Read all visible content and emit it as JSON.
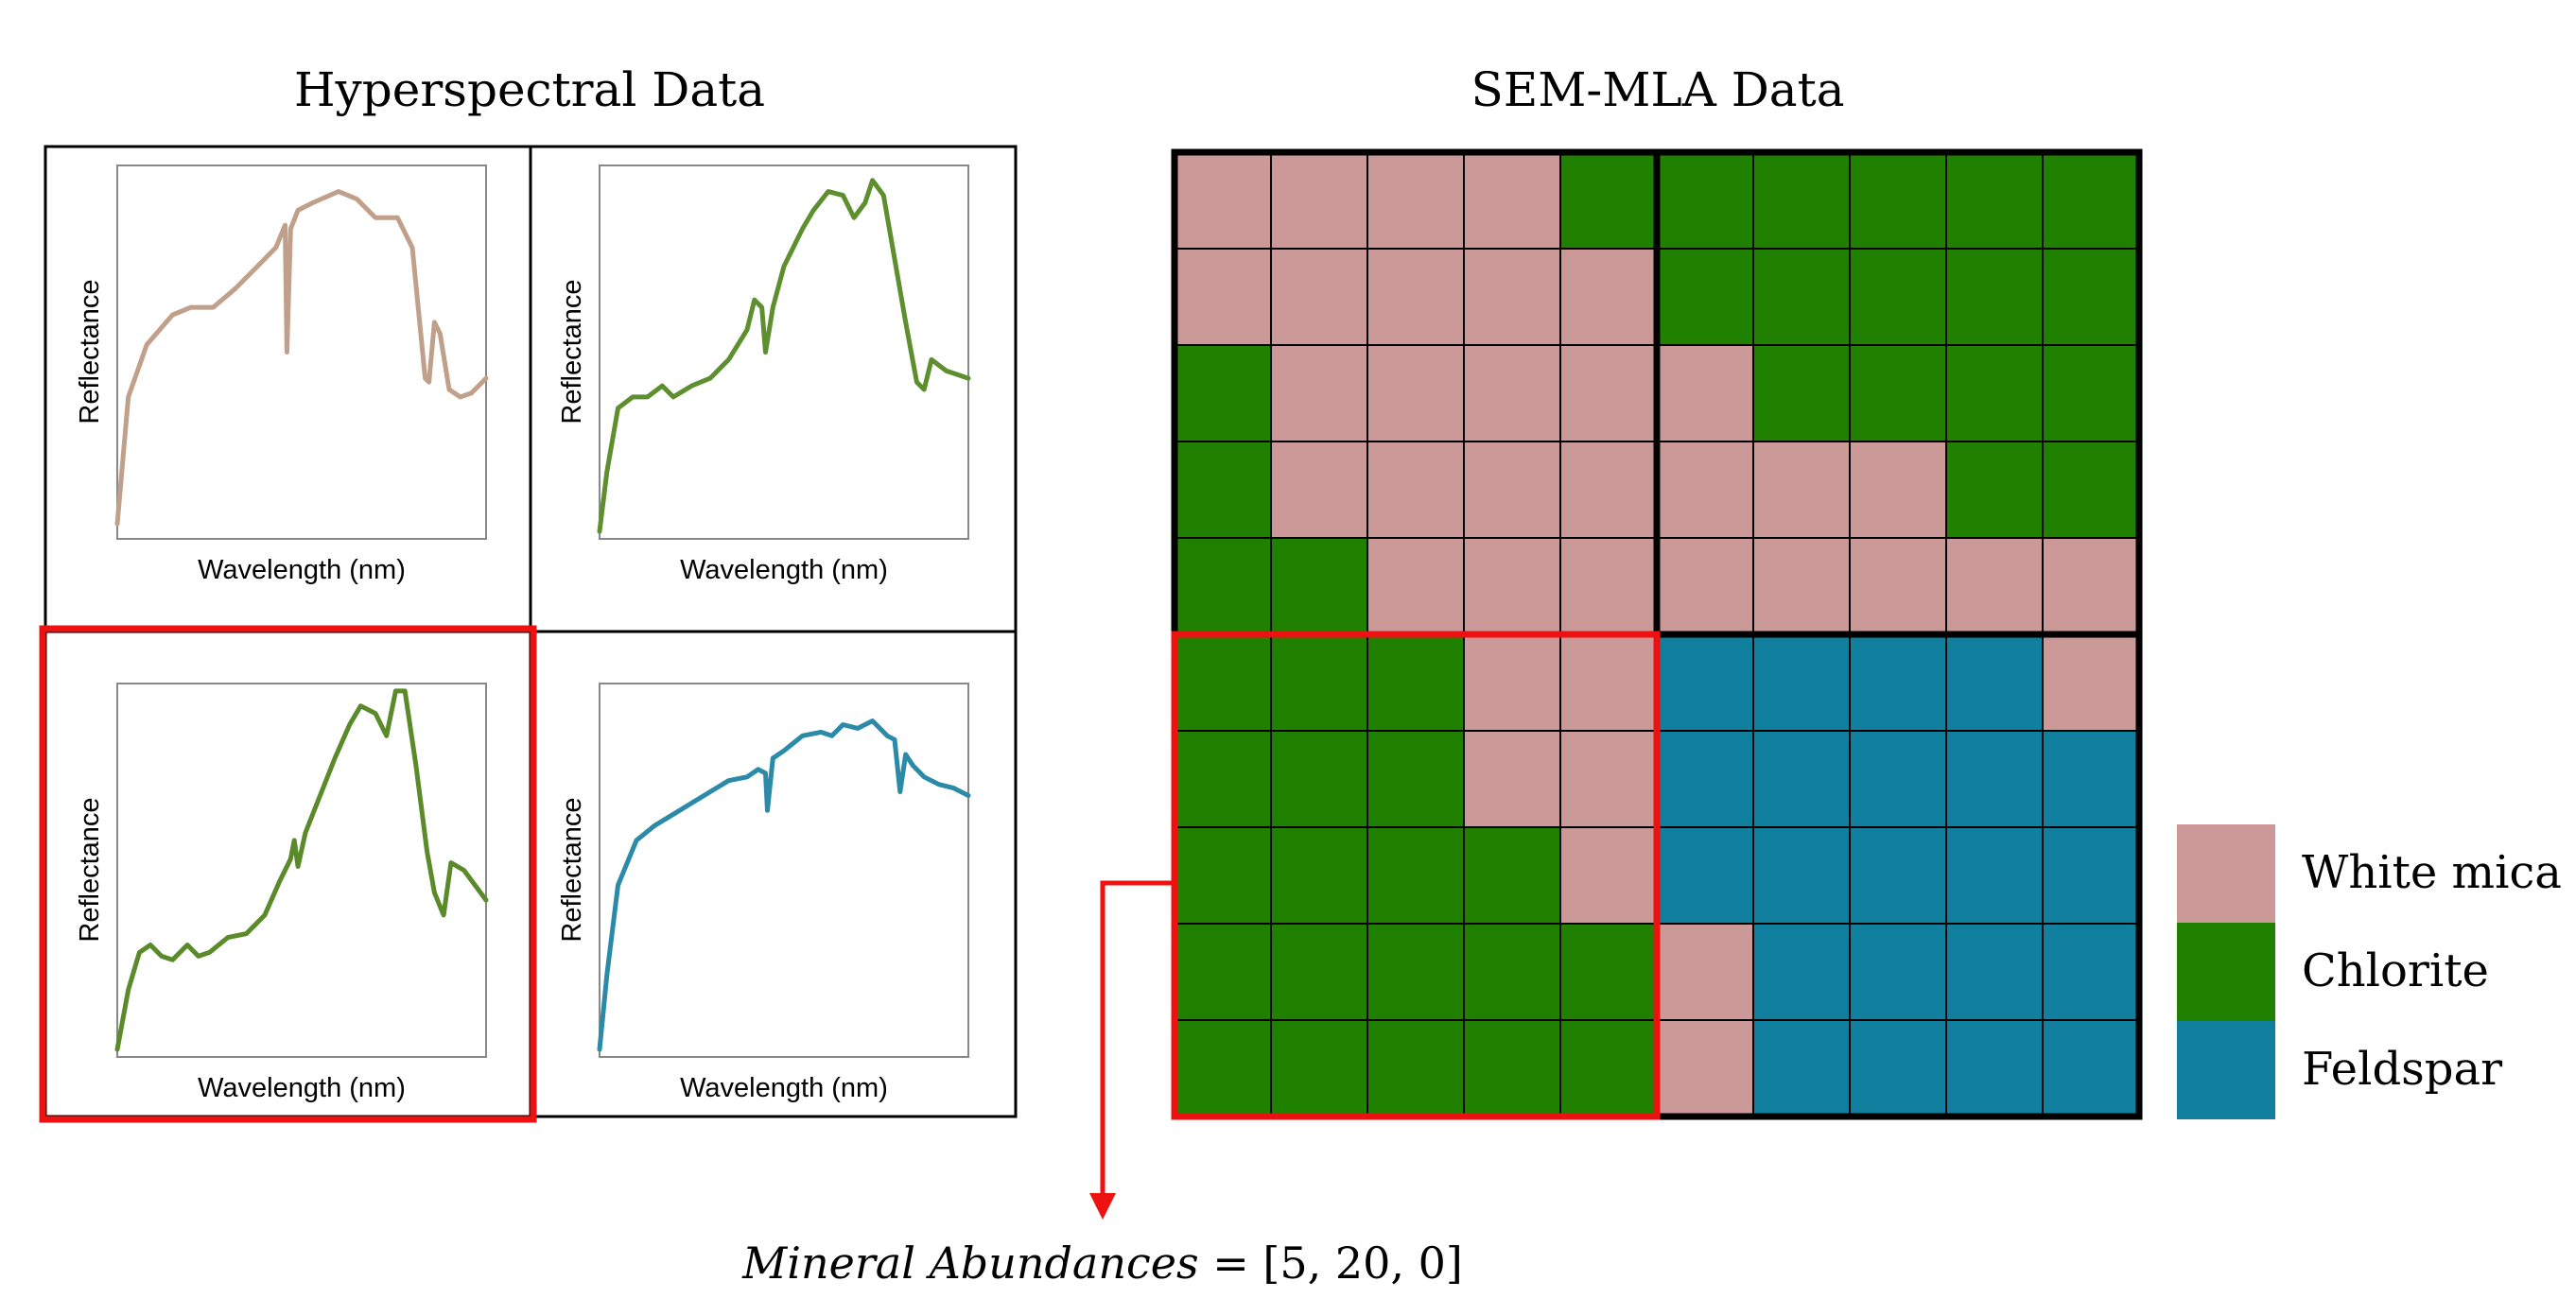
{
  "left_title": "Hyperspectral Data",
  "right_title": "SEM-MLA Data",
  "axis": {
    "x_label": "Wavelength (nm)",
    "y_label": "Reflectance"
  },
  "spectra": [
    {
      "name": "white-mica",
      "color": "#c0a08a",
      "selected": false,
      "points": [
        [
          0,
          0.04
        ],
        [
          0.03,
          0.38
        ],
        [
          0.08,
          0.52
        ],
        [
          0.15,
          0.6
        ],
        [
          0.2,
          0.62
        ],
        [
          0.26,
          0.62
        ],
        [
          0.32,
          0.67
        ],
        [
          0.38,
          0.73
        ],
        [
          0.43,
          0.78
        ],
        [
          0.455,
          0.84
        ],
        [
          0.46,
          0.5
        ],
        [
          0.47,
          0.83
        ],
        [
          0.49,
          0.88
        ],
        [
          0.53,
          0.9
        ],
        [
          0.6,
          0.93
        ],
        [
          0.65,
          0.91
        ],
        [
          0.7,
          0.86
        ],
        [
          0.76,
          0.86
        ],
        [
          0.8,
          0.78
        ],
        [
          0.835,
          0.43
        ],
        [
          0.845,
          0.42
        ],
        [
          0.86,
          0.58
        ],
        [
          0.875,
          0.55
        ],
        [
          0.9,
          0.4
        ],
        [
          0.93,
          0.38
        ],
        [
          0.96,
          0.39
        ],
        [
          1,
          0.43
        ]
      ]
    },
    {
      "name": "chlorite",
      "color": "#5e8f2e",
      "selected": false,
      "points": [
        [
          0,
          0.02
        ],
        [
          0.02,
          0.18
        ],
        [
          0.05,
          0.35
        ],
        [
          0.09,
          0.38
        ],
        [
          0.13,
          0.38
        ],
        [
          0.17,
          0.41
        ],
        [
          0.2,
          0.38
        ],
        [
          0.25,
          0.41
        ],
        [
          0.3,
          0.43
        ],
        [
          0.35,
          0.48
        ],
        [
          0.4,
          0.56
        ],
        [
          0.42,
          0.64
        ],
        [
          0.44,
          0.62
        ],
        [
          0.45,
          0.5
        ],
        [
          0.47,
          0.62
        ],
        [
          0.5,
          0.73
        ],
        [
          0.55,
          0.83
        ],
        [
          0.58,
          0.88
        ],
        [
          0.62,
          0.93
        ],
        [
          0.66,
          0.92
        ],
        [
          0.69,
          0.86
        ],
        [
          0.72,
          0.9
        ],
        [
          0.74,
          0.96
        ],
        [
          0.77,
          0.92
        ],
        [
          0.8,
          0.75
        ],
        [
          0.83,
          0.58
        ],
        [
          0.86,
          0.42
        ],
        [
          0.88,
          0.4
        ],
        [
          0.9,
          0.48
        ],
        [
          0.94,
          0.45
        ],
        [
          1,
          0.43
        ]
      ]
    },
    {
      "name": "chlorite-selected",
      "color": "#5a8a2a",
      "selected": true,
      "points": [
        [
          0,
          0.02
        ],
        [
          0.03,
          0.18
        ],
        [
          0.06,
          0.28
        ],
        [
          0.09,
          0.3
        ],
        [
          0.12,
          0.27
        ],
        [
          0.15,
          0.26
        ],
        [
          0.19,
          0.3
        ],
        [
          0.22,
          0.27
        ],
        [
          0.25,
          0.28
        ],
        [
          0.3,
          0.32
        ],
        [
          0.35,
          0.33
        ],
        [
          0.4,
          0.38
        ],
        [
          0.44,
          0.47
        ],
        [
          0.47,
          0.53
        ],
        [
          0.48,
          0.58
        ],
        [
          0.49,
          0.51
        ],
        [
          0.51,
          0.6
        ],
        [
          0.55,
          0.7
        ],
        [
          0.59,
          0.8
        ],
        [
          0.63,
          0.89
        ],
        [
          0.66,
          0.94
        ],
        [
          0.7,
          0.92
        ],
        [
          0.73,
          0.86
        ],
        [
          0.755,
          0.98
        ],
        [
          0.78,
          0.98
        ],
        [
          0.81,
          0.78
        ],
        [
          0.84,
          0.55
        ],
        [
          0.86,
          0.44
        ],
        [
          0.885,
          0.38
        ],
        [
          0.905,
          0.52
        ],
        [
          0.94,
          0.5
        ],
        [
          1,
          0.42
        ]
      ]
    },
    {
      "name": "feldspar",
      "color": "#2a8aa8",
      "selected": false,
      "points": [
        [
          0,
          0.02
        ],
        [
          0.02,
          0.22
        ],
        [
          0.05,
          0.46
        ],
        [
          0.1,
          0.58
        ],
        [
          0.15,
          0.62
        ],
        [
          0.2,
          0.65
        ],
        [
          0.25,
          0.68
        ],
        [
          0.3,
          0.71
        ],
        [
          0.35,
          0.74
        ],
        [
          0.4,
          0.75
        ],
        [
          0.43,
          0.77
        ],
        [
          0.45,
          0.76
        ],
        [
          0.455,
          0.66
        ],
        [
          0.47,
          0.8
        ],
        [
          0.5,
          0.82
        ],
        [
          0.55,
          0.86
        ],
        [
          0.6,
          0.87
        ],
        [
          0.63,
          0.86
        ],
        [
          0.66,
          0.89
        ],
        [
          0.7,
          0.88
        ],
        [
          0.74,
          0.9
        ],
        [
          0.78,
          0.86
        ],
        [
          0.8,
          0.85
        ],
        [
          0.815,
          0.71
        ],
        [
          0.83,
          0.81
        ],
        [
          0.85,
          0.78
        ],
        [
          0.88,
          0.75
        ],
        [
          0.92,
          0.73
        ],
        [
          0.96,
          0.72
        ],
        [
          1,
          0.7
        ]
      ]
    }
  ],
  "grid": {
    "colors": {
      "W": "#cc9999",
      "C": "#208000",
      "F": "#10809e"
    },
    "rows": [
      "WWWWCCCCCC",
      "WWWWWCCCCC",
      "CWWWWWCCCC",
      "CWWWWWWWCC",
      "CCWWWWWWWW",
      "CCCWWFFFFW",
      "CCCWWFFFFF",
      "CCCCWFFFFF",
      "CCCCCWFFFF",
      "CCCCCWFFFF"
    ]
  },
  "legend": [
    {
      "key": "W",
      "label": "White mica",
      "color": "#cc9999"
    },
    {
      "key": "C",
      "label": "Chlorite",
      "color": "#208000"
    },
    {
      "key": "F",
      "label": "Feldspar",
      "color": "#10809e"
    }
  ],
  "highlight_color": "#ee1111",
  "formula": {
    "lhs": "Mineral Abundances",
    "eq": " = ",
    "rhs": "[5, 20, 0]"
  }
}
